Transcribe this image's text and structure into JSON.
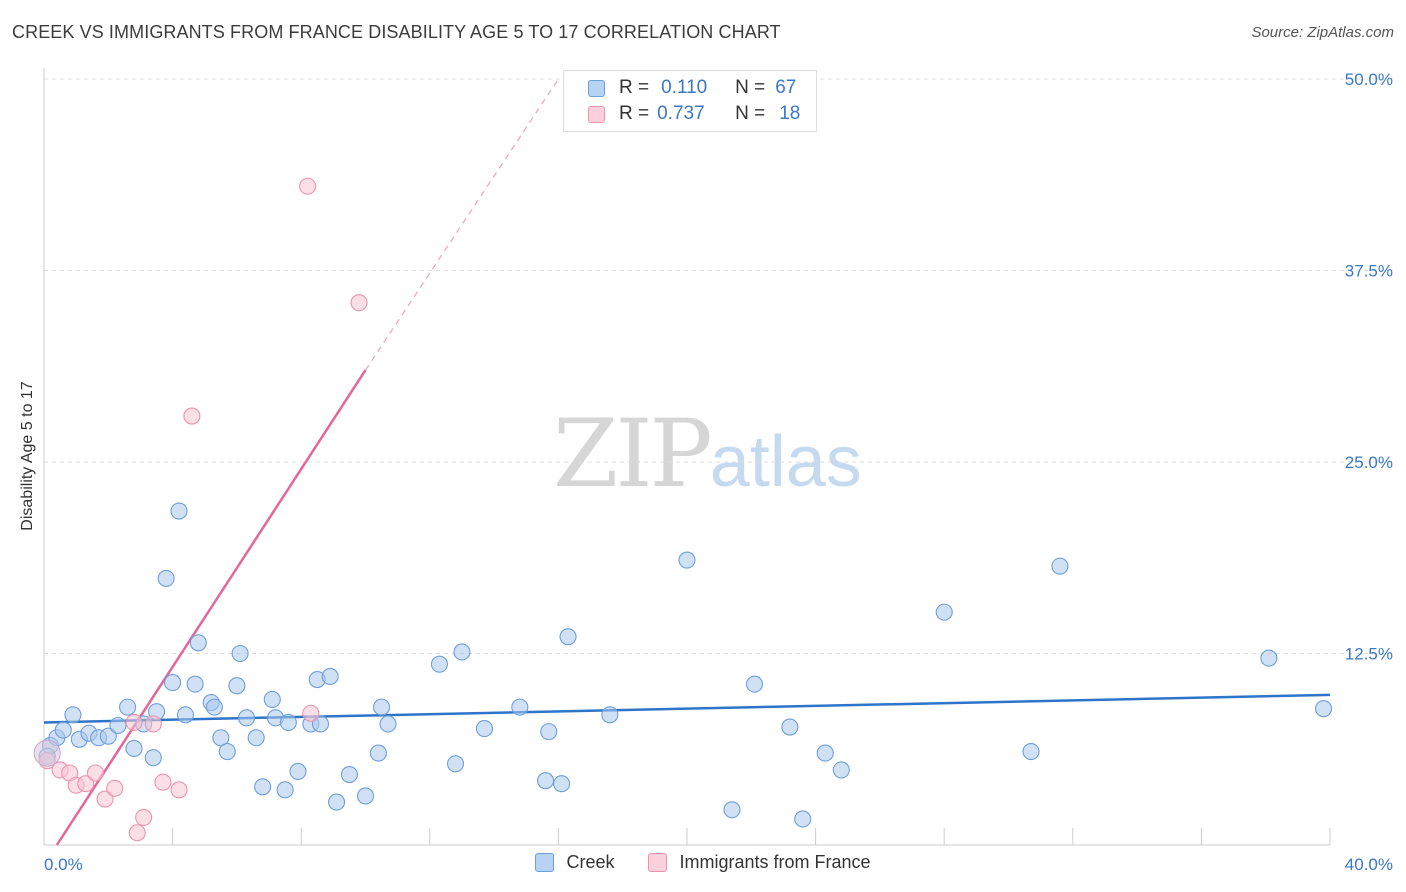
{
  "chart_data": {
    "type": "scatter",
    "title": "CREEK VS IMMIGRANTS FROM FRANCE DISABILITY AGE 5 TO 17 CORRELATION CHART",
    "source": "Source: ZipAtlas.com",
    "xlabel": "",
    "ylabel": "Disability Age 5 to 17",
    "xlim": [
      0,
      40
    ],
    "ylim": [
      0,
      50
    ],
    "x_tick_labels": [
      "0.0%",
      "40.0%"
    ],
    "y_ticks": [
      12.5,
      25.0,
      37.5,
      50.0
    ],
    "y_tick_labels": [
      "12.5%",
      "25.0%",
      "37.5%",
      "50.0%"
    ],
    "legend": {
      "r_label": "R =",
      "n_label": "N =",
      "entries": [
        {
          "r": "0.110",
          "n": "67"
        },
        {
          "r": "0.737",
          "n": "18"
        }
      ]
    },
    "series": [
      {
        "name": "Creek",
        "color": "#a9c8ef",
        "stroke": "#6f9fd8",
        "trend_color": "#2f74c9",
        "trend": {
          "x0": 0,
          "y0": 8.0,
          "x1": 40,
          "y1": 9.8
        },
        "points": [
          [
            0.2,
            6.5
          ],
          [
            0.4,
            7.0
          ],
          [
            0.6,
            7.5
          ],
          [
            0.9,
            8.5
          ],
          [
            1.1,
            6.9
          ],
          [
            1.4,
            7.3
          ],
          [
            1.7,
            7.0
          ],
          [
            2.0,
            7.1
          ],
          [
            2.3,
            7.8
          ],
          [
            2.6,
            9.0
          ],
          [
            2.8,
            6.3
          ],
          [
            3.1,
            7.9
          ],
          [
            3.4,
            5.7
          ],
          [
            3.5,
            8.7
          ],
          [
            3.8,
            17.4
          ],
          [
            4.0,
            10.6
          ],
          [
            4.2,
            21.8
          ],
          [
            4.4,
            8.5
          ],
          [
            4.7,
            10.5
          ],
          [
            4.8,
            13.2
          ],
          [
            5.2,
            9.3
          ],
          [
            5.3,
            9.0
          ],
          [
            5.5,
            7.0
          ],
          [
            5.7,
            6.1
          ],
          [
            6.0,
            10.4
          ],
          [
            6.1,
            12.5
          ],
          [
            6.3,
            8.3
          ],
          [
            6.6,
            7.0
          ],
          [
            6.8,
            3.8
          ],
          [
            7.1,
            9.5
          ],
          [
            7.2,
            8.3
          ],
          [
            7.5,
            3.6
          ],
          [
            7.6,
            8.0
          ],
          [
            7.9,
            4.8
          ],
          [
            8.3,
            7.9
          ],
          [
            8.5,
            10.8
          ],
          [
            8.6,
            7.9
          ],
          [
            8.9,
            11.0
          ],
          [
            9.1,
            2.8
          ],
          [
            9.5,
            4.6
          ],
          [
            10.0,
            3.2
          ],
          [
            10.4,
            6.0
          ],
          [
            10.5,
            9.0
          ],
          [
            10.7,
            7.9
          ],
          [
            12.3,
            11.8
          ],
          [
            12.8,
            5.3
          ],
          [
            13.0,
            12.6
          ],
          [
            13.7,
            7.6
          ],
          [
            14.8,
            9.0
          ],
          [
            15.6,
            4.2
          ],
          [
            15.7,
            7.4
          ],
          [
            16.1,
            4.0
          ],
          [
            16.3,
            13.6
          ],
          [
            17.6,
            8.5
          ],
          [
            20.0,
            18.6
          ],
          [
            21.4,
            2.3
          ],
          [
            22.1,
            10.5
          ],
          [
            23.2,
            7.7
          ],
          [
            23.6,
            1.7
          ],
          [
            24.3,
            6.0
          ],
          [
            24.8,
            4.9
          ],
          [
            28.0,
            15.2
          ],
          [
            30.7,
            6.1
          ],
          [
            31.6,
            18.2
          ],
          [
            38.1,
            12.2
          ],
          [
            39.8,
            8.9
          ],
          [
            0.1,
            5.8
          ]
        ]
      },
      {
        "name": "Immigrants from France",
        "color": "#f9c2d2",
        "stroke": "#ec94ae",
        "trend_color": "#e3679a",
        "trend": {
          "x0": 0.4,
          "y0": 0,
          "x1": 10.0,
          "y1": 31.0
        },
        "trend_ext": {
          "x0": 10.0,
          "y0": 31.0,
          "x1": 16.0,
          "y1": 50.0
        },
        "points": [
          [
            0.1,
            5.5
          ],
          [
            0.5,
            4.9
          ],
          [
            0.8,
            4.7
          ],
          [
            1.0,
            3.9
          ],
          [
            1.3,
            4.0
          ],
          [
            1.6,
            4.7
          ],
          [
            1.9,
            3.0
          ],
          [
            2.2,
            3.7
          ],
          [
            2.8,
            8.0
          ],
          [
            2.9,
            0.8
          ],
          [
            3.1,
            1.8
          ],
          [
            3.4,
            7.9
          ],
          [
            3.7,
            4.1
          ],
          [
            4.2,
            3.6
          ],
          [
            4.6,
            28.0
          ],
          [
            8.2,
            43.0
          ],
          [
            9.8,
            35.4
          ],
          [
            8.3,
            8.6
          ]
        ]
      }
    ],
    "watermark": {
      "zip": "ZIP",
      "atlas": "atlas"
    }
  }
}
